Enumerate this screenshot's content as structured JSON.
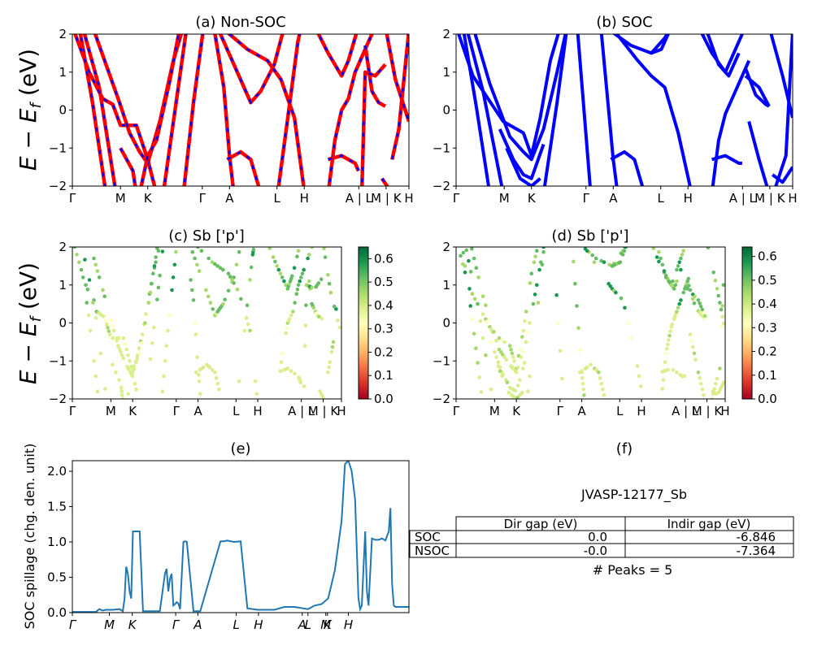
{
  "chart_data": [
    {
      "type": "line",
      "title": "(a) Non-SOC",
      "ylabel": "E − E_f (eV)",
      "ylim": [
        -2,
        2
      ],
      "yticks": [
        "2",
        "1",
        "0",
        "−1",
        "−2"
      ],
      "xticks": [
        "Γ",
        "M",
        "K",
        "Γ",
        "A",
        "L",
        "H",
        "A | L",
        "M | K",
        "H"
      ],
      "series": [
        {
          "style": "red solid + blue dashed"
        }
      ]
    },
    {
      "type": "line",
      "title": "(b) SOC",
      "ylim": [
        -2,
        2
      ],
      "yticks": [
        "2",
        "1",
        "0",
        "−1",
        "−2"
      ],
      "xticks": [
        "Γ",
        "M",
        "K",
        "Γ",
        "A",
        "L",
        "H",
        "A | L",
        "M | K",
        "H"
      ],
      "series": [
        {
          "style": "blue solid"
        }
      ]
    },
    {
      "type": "scatter",
      "title": "(c)  Sb ['p']",
      "ylabel": "E − E_f (eV)",
      "ylim": [
        -2,
        2
      ],
      "yticks": [
        "2",
        "1",
        "0",
        "−1",
        "−2"
      ],
      "xticks": [
        "Γ",
        "M",
        "K",
        "Γ",
        "A",
        "L",
        "H",
        "A | L",
        "M | K",
        "H"
      ],
      "colorbar": {
        "ticks": [
          "0.0",
          "0.1",
          "0.2",
          "0.3",
          "0.4",
          "0.5",
          "0.6"
        ],
        "range": [
          0,
          0.65
        ],
        "colormap": "RdYlGn"
      }
    },
    {
      "type": "scatter",
      "title": "(d) Sb ['p']",
      "ylim": [
        -2,
        2
      ],
      "yticks": [
        "2",
        "1",
        "0",
        "−1",
        "−2"
      ],
      "xticks": [
        "Γ",
        "M",
        "K",
        "Γ",
        "A",
        "L",
        "H",
        "A | L",
        "M | K",
        "H"
      ],
      "colorbar": {
        "ticks": [
          "0.0",
          "0.1",
          "0.2",
          "0.3",
          "0.4",
          "0.5",
          "0.6"
        ],
        "range": [
          0,
          0.64
        ],
        "colormap": "RdYlGn"
      }
    },
    {
      "type": "line",
      "title": "(e)",
      "ylabel": "SOC spillage (chg. den. unit)",
      "ylim": [
        0,
        2.15
      ],
      "yticks": [
        "0.0",
        "0.5",
        "1.0",
        "1.5",
        "2.0"
      ],
      "xticks": [
        "Γ",
        "M",
        "K",
        "Γ",
        "A",
        "L",
        "H",
        "A",
        "L",
        "M",
        "K",
        "H"
      ],
      "color": "#1f77b4",
      "x": [
        0,
        0.07,
        0.08,
        0.09,
        0.1,
        0.12,
        0.14,
        0.15,
        0.155,
        0.16,
        0.165,
        0.17,
        0.175,
        0.18,
        0.185,
        0.19,
        0.2,
        0.21,
        0.24,
        0.26,
        0.275,
        0.28,
        0.285,
        0.29,
        0.295,
        0.3,
        0.305,
        0.31,
        0.315,
        0.32,
        0.33,
        0.335,
        0.34,
        0.36,
        0.38,
        0.44,
        0.445,
        0.45,
        0.46,
        0.48,
        0.5,
        0.52,
        0.55,
        0.58,
        0.6,
        0.63,
        0.66,
        0.7,
        0.72,
        0.74,
        0.76,
        0.78,
        0.8,
        0.81,
        0.82,
        0.83,
        0.84,
        0.85,
        0.855,
        0.86,
        0.87,
        0.875,
        0.88,
        0.89,
        0.9,
        0.91,
        0.92,
        0.93,
        0.94,
        0.945,
        0.95,
        0.955,
        0.96,
        0.965,
        0.97,
        0.98,
        1.0
      ],
      "y": [
        0.01,
        0.01,
        0.05,
        0.03,
        0.04,
        0.04,
        0.05,
        0.02,
        0.2,
        0.65,
        0.55,
        0.3,
        0.2,
        1.15,
        1.15,
        1.15,
        1.15,
        0.02,
        0.02,
        0.02,
        0.55,
        0.62,
        0.3,
        0.48,
        0.55,
        0.1,
        0.12,
        0.15,
        0.13,
        0.05,
        1.0,
        1.01,
        1.0,
        0.02,
        0.02,
        1.01,
        1.01,
        1.01,
        1.02,
        1.0,
        1.01,
        0.06,
        0.04,
        0.04,
        0.04,
        0.08,
        0.08,
        0.05,
        0.1,
        0.12,
        0.2,
        0.6,
        1.3,
        2.1,
        2.15,
        2.0,
        1.6,
        0.2,
        0.05,
        0.1,
        1.15,
        0.3,
        0.1,
        1.05,
        1.03,
        1.03,
        1.05,
        1.02,
        1.15,
        1.48,
        0.4,
        0.1,
        0.08,
        0.08,
        0.08,
        0.08,
        0.08
      ]
    },
    {
      "type": "table",
      "title": "(f)",
      "table_title": "JVASP-12177_Sb",
      "columns": [
        "Dir gap (eV)",
        "Indir gap (eV)"
      ],
      "rows": [
        {
          "label": "SOC",
          "values": [
            "0.0",
            "-6.846"
          ]
        },
        {
          "label": "NSOC",
          "values": [
            "-0.0",
            "-7.364"
          ]
        }
      ],
      "footer": "# Peaks = 5"
    }
  ]
}
